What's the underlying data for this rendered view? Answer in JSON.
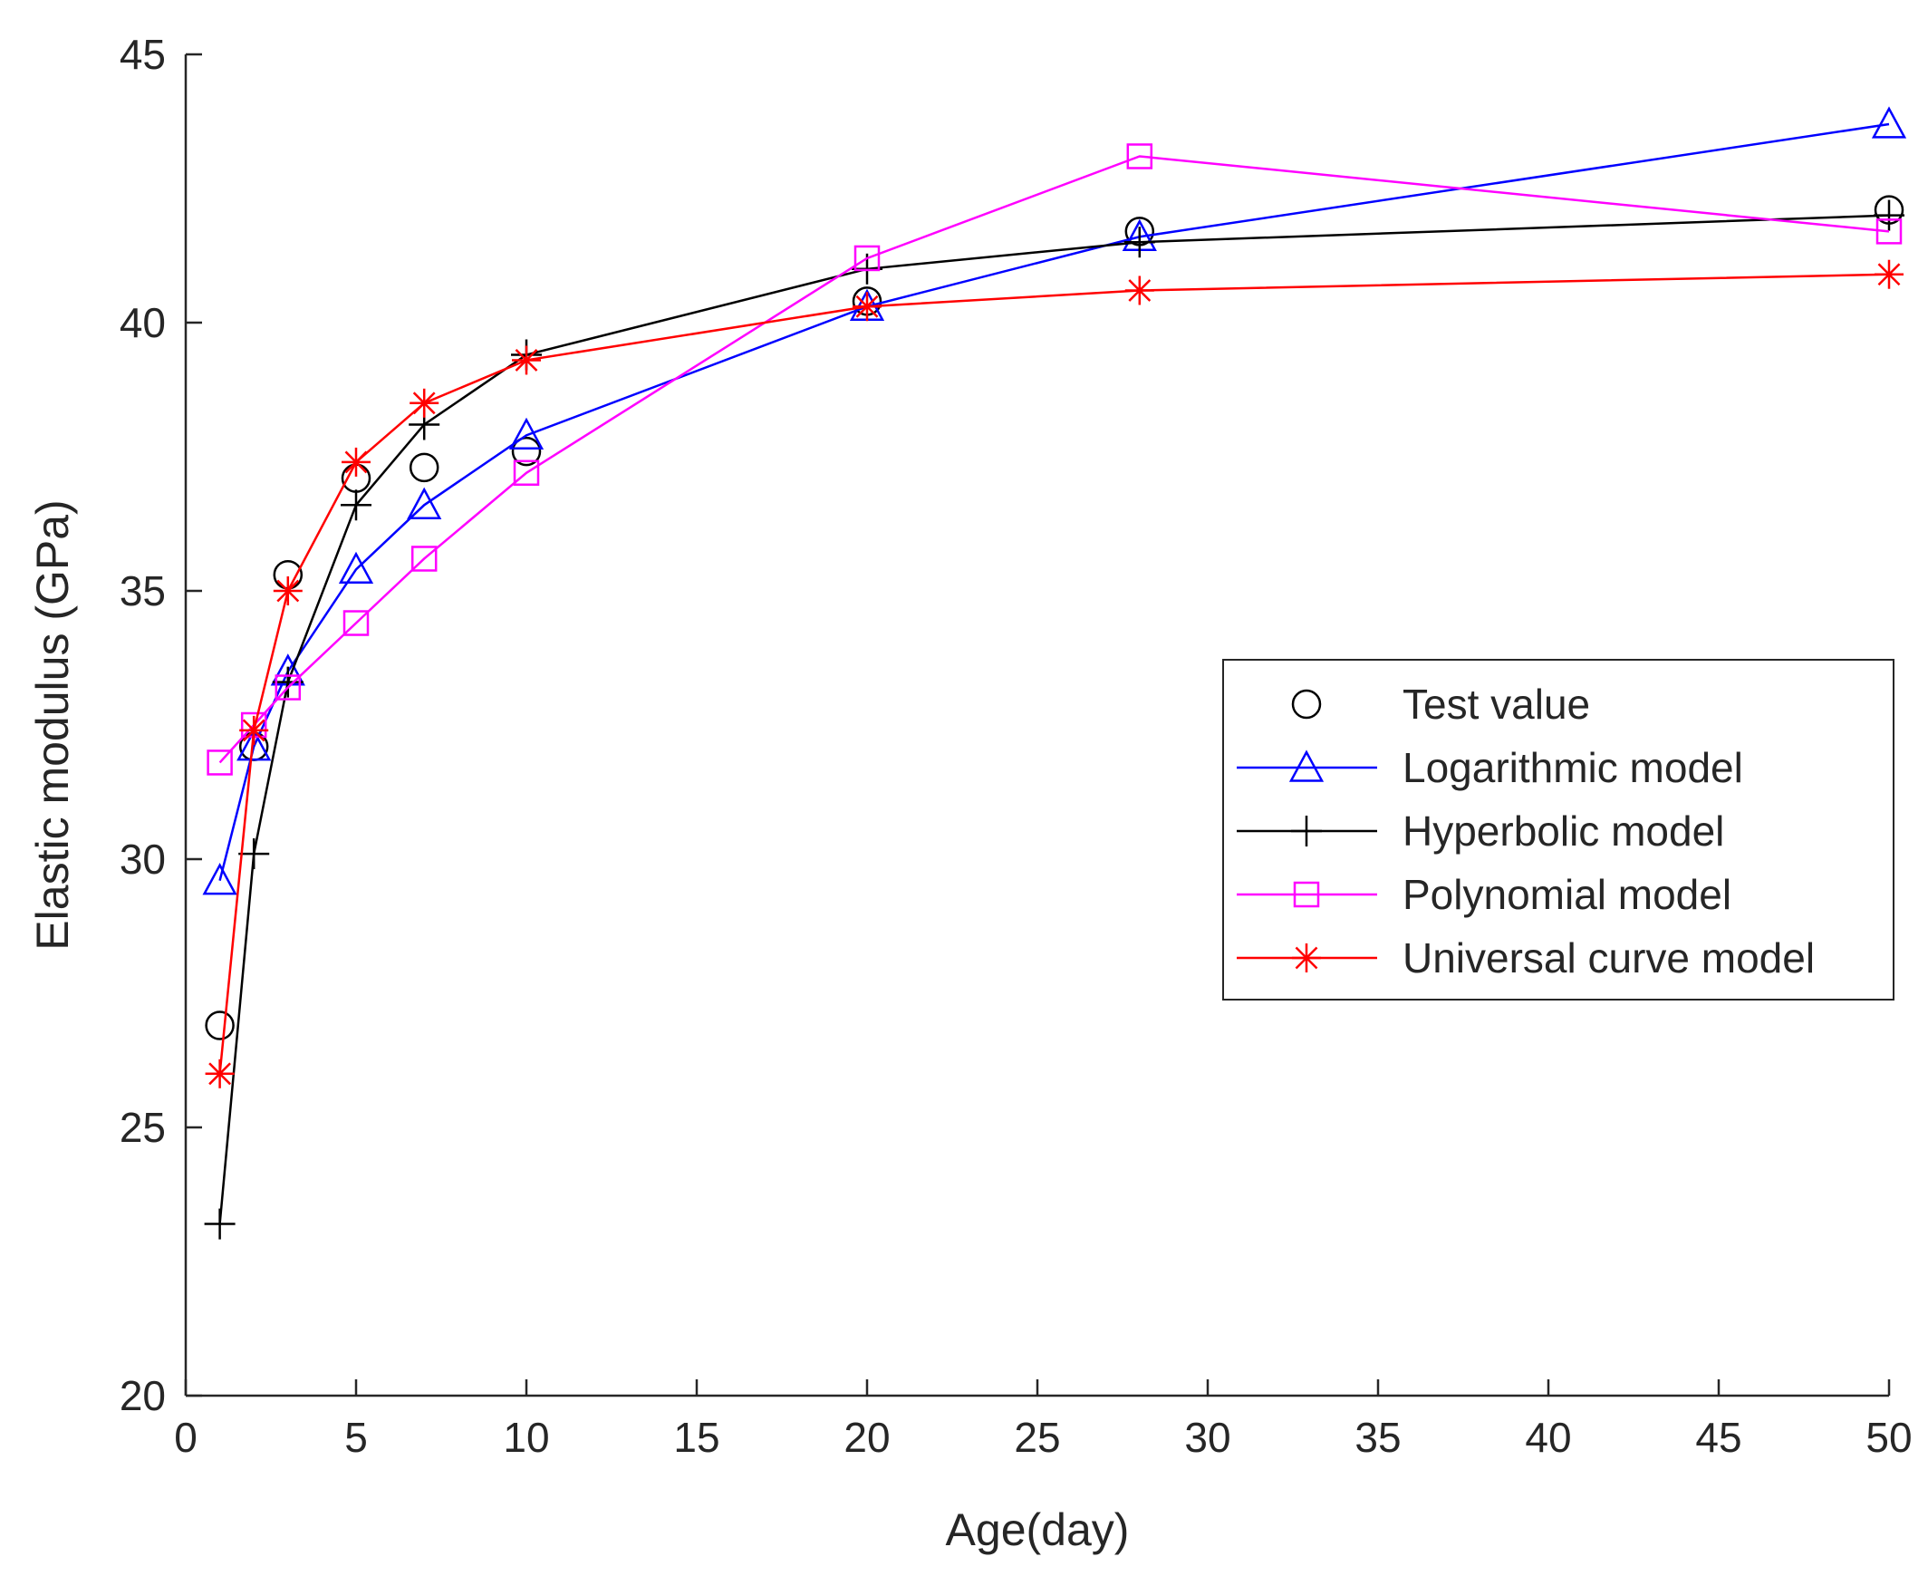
{
  "chart_data": {
    "type": "line",
    "xlabel": "Age(day)",
    "ylabel": "Elastic modulus (GPa)",
    "xlim": [
      0,
      50
    ],
    "ylim": [
      20,
      45
    ],
    "xticks": [
      0,
      5,
      10,
      15,
      20,
      25,
      30,
      35,
      40,
      45,
      50
    ],
    "yticks": [
      20,
      25,
      30,
      35,
      40,
      45
    ],
    "grid": false,
    "legend_position": "center-right",
    "x": [
      1,
      2,
      3,
      5,
      7,
      10,
      20,
      28,
      50
    ],
    "series": [
      {
        "name": "Test value",
        "marker": "circle",
        "line": false,
        "color": "#000000",
        "values": [
          26.9,
          32.1,
          35.3,
          37.1,
          37.3,
          37.6,
          40.4,
          41.7,
          42.1
        ]
      },
      {
        "name": "Logarithmic model",
        "marker": "triangle",
        "line": true,
        "color": "#0000ff",
        "values": [
          29.6,
          32.1,
          33.5,
          35.4,
          36.6,
          37.9,
          40.3,
          41.6,
          43.7
        ]
      },
      {
        "name": "Hyperbolic model",
        "marker": "plus",
        "line": true,
        "color": "#000000",
        "values": [
          23.2,
          30.1,
          33.3,
          36.6,
          38.1,
          39.4,
          41.0,
          41.5,
          42.0
        ]
      },
      {
        "name": "Polynomial model",
        "marker": "square",
        "line": true,
        "color": "#ff00ff",
        "values": [
          31.8,
          32.5,
          33.2,
          34.4,
          35.6,
          37.2,
          41.2,
          43.1,
          41.7
        ]
      },
      {
        "name": "Universal curve model",
        "marker": "asterisk",
        "line": true,
        "color": "#ff0000",
        "values": [
          26.0,
          32.4,
          35.0,
          37.4,
          38.5,
          39.3,
          40.3,
          40.6,
          40.9
        ]
      }
    ]
  }
}
